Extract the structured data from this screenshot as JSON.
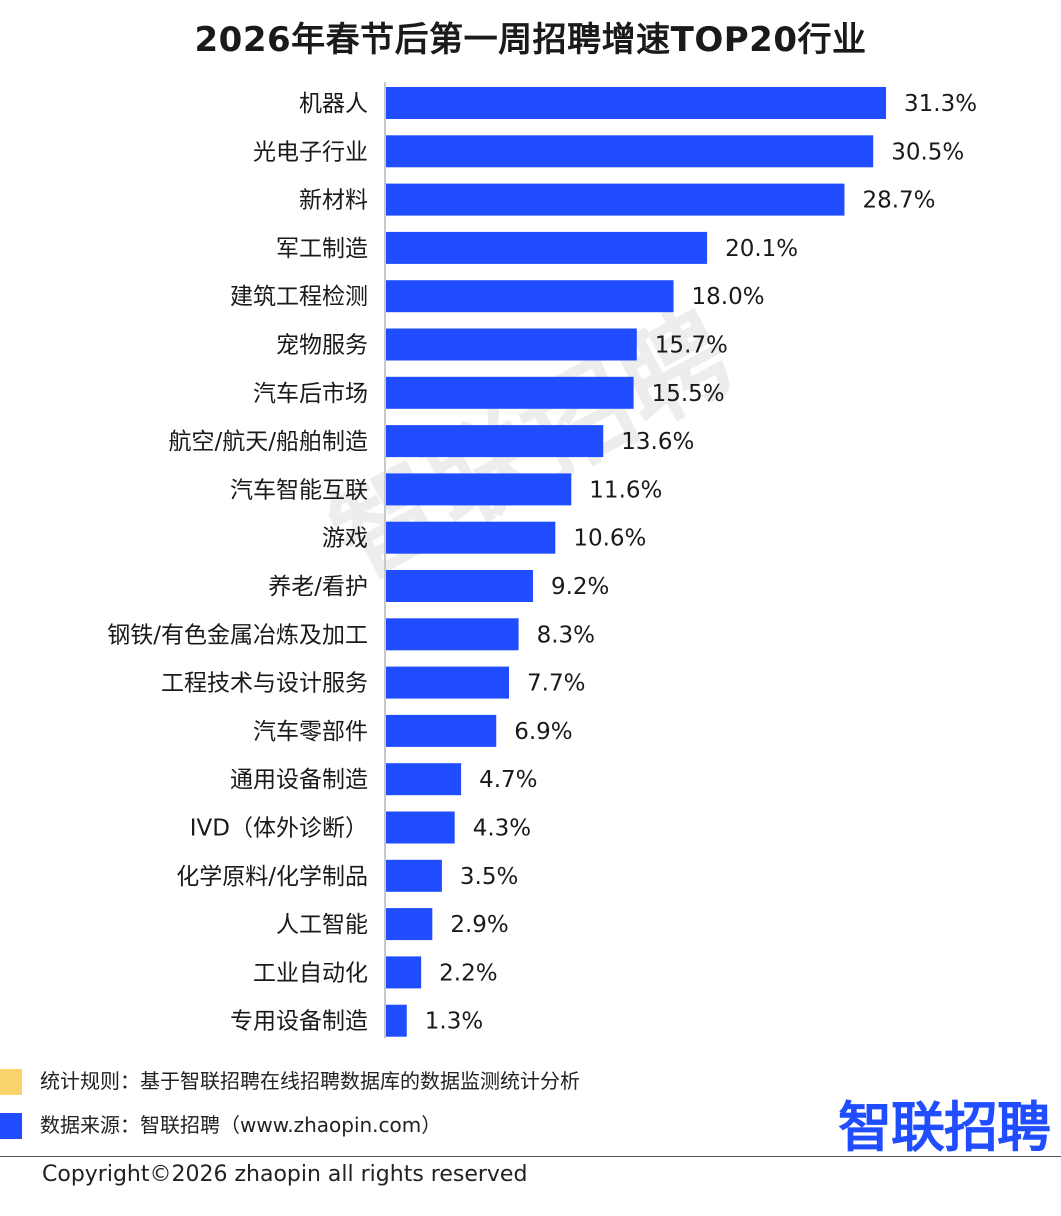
{
  "chart_data": {
    "type": "bar",
    "orientation": "horizontal",
    "title": "2026年春节后第一周招聘增速TOP20行业",
    "categories": [
      "机器人",
      "光电子行业",
      "新材料",
      "军工制造",
      "建筑工程检测",
      "宠物服务",
      "汽车后市场",
      "航空/航天/船舶制造",
      "汽车智能互联",
      "游戏",
      "养老/看护",
      "钢铁/有色金属冶炼及加工",
      "工程技术与设计服务",
      "汽车零部件",
      "通用设备制造",
      "IVD（体外诊断）",
      "化学原料/化学制品",
      "人工智能",
      "工业自动化",
      "专用设备制造"
    ],
    "values": [
      31.3,
      30.5,
      28.7,
      20.1,
      18.0,
      15.7,
      15.5,
      13.6,
      11.6,
      10.6,
      9.2,
      8.3,
      7.7,
      6.9,
      4.7,
      4.3,
      3.5,
      2.9,
      2.2,
      1.3
    ],
    "value_labels": [
      "31.3%",
      "30.5%",
      "28.7%",
      "20.1%",
      "18.0%",
      "15.7%",
      "15.5%",
      "13.6%",
      "11.6%",
      "10.6%",
      "9.2%",
      "8.3%",
      "7.7%",
      "6.9%",
      "4.7%",
      "4.3%",
      "3.5%",
      "2.9%",
      "2.2%",
      "1.3%"
    ],
    "unit": "%",
    "xlim": [
      0,
      31.3
    ],
    "grid": false,
    "legend": "none",
    "bar_color": "#1f4dff"
  },
  "notes": [
    {
      "label": "统计规则：基于智联招聘在线招聘数据库的数据监测统计分析",
      "color": "#f9d36b"
    },
    {
      "label": "数据来源：智联招聘（www.zhaopin.com）",
      "color": "#1f4dff"
    }
  ],
  "watermark": "智联招聘",
  "logo": "智联招聘",
  "copyright": "Copyright©2026 zhaopin all rights reserved"
}
